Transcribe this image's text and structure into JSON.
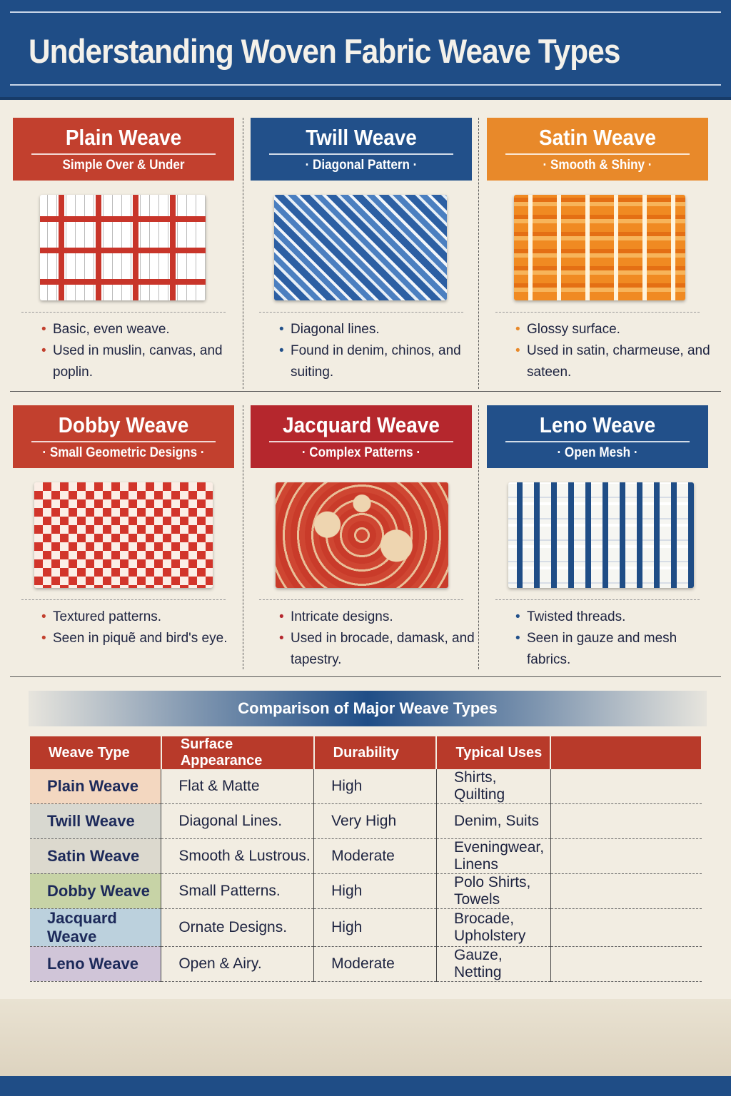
{
  "title": "Understanding Woven Fabric Weave Types",
  "colors": {
    "red": "#b83a2a",
    "blue": "#1f4d86",
    "orange": "#e8892a",
    "background": "#f2ede2"
  },
  "cards": [
    {
      "name": "Plain Weave",
      "subtitle": "Simple Over & Under",
      "bullets": [
        "Basic, even weave.",
        "Used in muslin, canvas, and poplin."
      ],
      "color": "#c2402e",
      "pattern": "plain-weave-red-white"
    },
    {
      "name": "Twill Weave",
      "subtitle": "· Diagonal Pattern ·",
      "bullets": [
        "Diagonal lines.",
        "Found in denim, chinos, and suiting."
      ],
      "color": "#22508a",
      "pattern": "twill-blue"
    },
    {
      "name": "Satin Weave",
      "subtitle": "· Smooth & Shiny ·",
      "bullets": [
        "Glossy surface.",
        "Used in satin, charmeuse, and sateen."
      ],
      "color": "#e8892a",
      "pattern": "satin-orange"
    },
    {
      "name": "Dobby Weave",
      "subtitle": "· Small Geometric Designs ·",
      "bullets": [
        "Textured patterns.",
        "Seen in piquẽ and bird's eye."
      ],
      "color": "#c2402e",
      "pattern": "dobby-checker-red"
    },
    {
      "name": "Jacquard Weave",
      "subtitle": "· Complex Patterns ·",
      "bullets": [
        "Intricate designs.",
        "Used in brocade, damask, and tapestry."
      ],
      "color": "#b5272d",
      "pattern": "jacquard-damask"
    },
    {
      "name": "Leno Weave",
      "subtitle": "· Open Mesh ·",
      "bullets": [
        "Twisted threads.",
        "Seen in gauze and mesh fabrics."
      ],
      "color": "#22508a",
      "pattern": "leno-mesh-blue"
    }
  ],
  "comparison": {
    "title": "Comparison of Major Weave Types",
    "headers": [
      "Weave Type",
      "Surface Appearance",
      "Durability",
      "Typical Uses",
      ""
    ],
    "rows": [
      [
        "Plain Weave",
        "Flat & Matte",
        "High",
        "Shirts, Quilting"
      ],
      [
        "Twill Weave",
        "Diagonal Lines.",
        "Very High",
        "Denim, Suits"
      ],
      [
        "Satin Weave",
        "Smooth & Lustrous.",
        "Moderate",
        "Eveningwear, Linens"
      ],
      [
        "Dobby Weave",
        "Small Patterns.",
        "High",
        "Polo Shirts, Towels"
      ],
      [
        "Jacquard Weave",
        "Ornate Designs.",
        "High",
        "Brocade, Upholstery"
      ],
      [
        "Leno Weave",
        "Open & Airy.",
        "Moderate",
        "Gauze, Netting"
      ]
    ],
    "row_colors": [
      "#f3d7c0",
      "#d8d8d0",
      "#dcd9ce",
      "#c7d3a6",
      "#bcd1dd",
      "#d0c5d8"
    ]
  }
}
